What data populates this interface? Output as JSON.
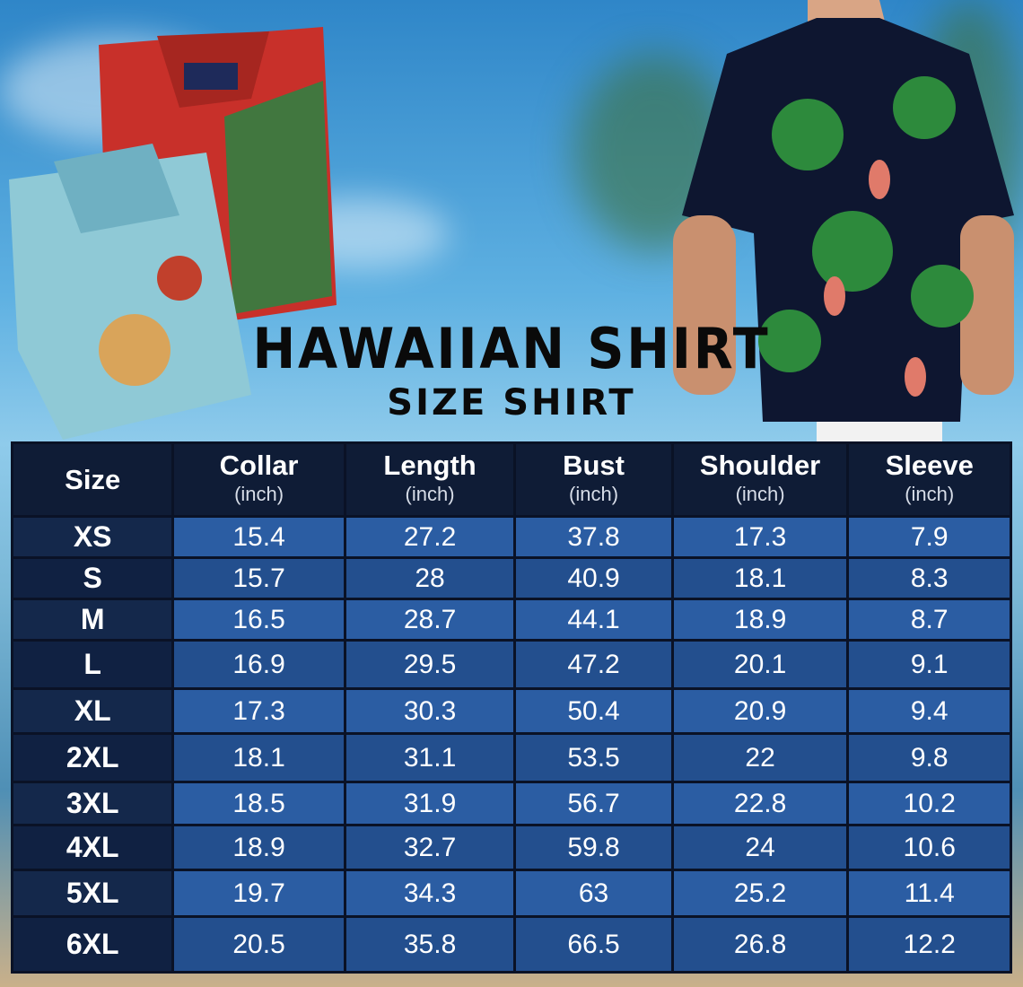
{
  "title": "HAWAIIAN SHIRT",
  "subtitle": "SIZE SHIRT",
  "table": {
    "headers": [
      {
        "label": "Size",
        "unit": ""
      },
      {
        "label": "Collar",
        "unit": "(inch)"
      },
      {
        "label": "Length",
        "unit": "(inch)"
      },
      {
        "label": "Bust",
        "unit": "(inch)"
      },
      {
        "label": "Shoulder",
        "unit": "(inch)"
      },
      {
        "label": "Sleeve",
        "unit": "(inch)"
      }
    ],
    "rows": [
      [
        "XS",
        "15.4",
        "27.2",
        "37.8",
        "17.3",
        "7.9"
      ],
      [
        "S",
        "15.7",
        "28",
        "40.9",
        "18.1",
        "8.3"
      ],
      [
        "M",
        "16.5",
        "28.7",
        "44.1",
        "18.9",
        "8.7"
      ],
      [
        "L",
        "16.9",
        "29.5",
        "47.2",
        "20.1",
        "9.1"
      ],
      [
        "XL",
        "17.3",
        "30.3",
        "50.4",
        "20.9",
        "9.4"
      ],
      [
        "2XL",
        "18.1",
        "31.1",
        "53.5",
        "22",
        "9.8"
      ],
      [
        "3XL",
        "18.5",
        "31.9",
        "56.7",
        "22.8",
        "10.2"
      ],
      [
        "4XL",
        "18.9",
        "32.7",
        "59.8",
        "24",
        "10.6"
      ],
      [
        "5XL",
        "19.7",
        "34.3",
        "63",
        "25.2",
        "11.4"
      ],
      [
        "6XL",
        "20.5",
        "35.8",
        "66.5",
        "26.8",
        "12.2"
      ]
    ]
  },
  "colors": {
    "header": "#0f1c36",
    "size_col": "#14284b",
    "cell_light": "#2b5da3",
    "cell_dark": "#234f8e"
  }
}
